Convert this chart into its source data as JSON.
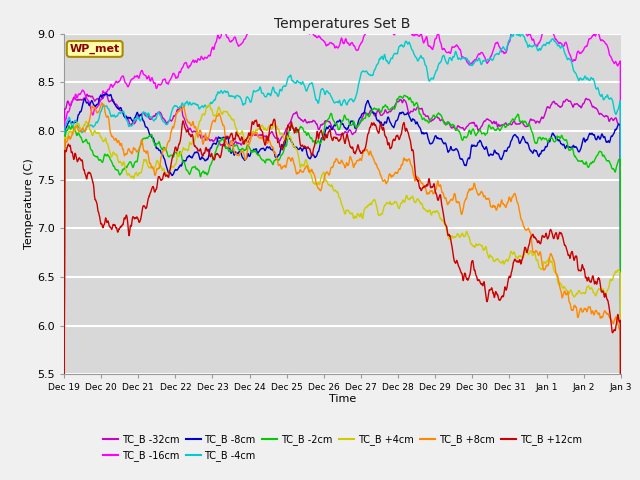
{
  "title": "Temperatures Set B",
  "xlabel": "Time",
  "ylabel": "Temperature (C)",
  "ylim": [
    5.5,
    9.0
  ],
  "series_colors": {
    "TC_B -32cm": "#cc00cc",
    "TC_B -16cm": "#ff00ff",
    "TC_B -8cm": "#0000cc",
    "TC_B -4cm": "#00cccc",
    "TC_B -2cm": "#00cc00",
    "TC_B +4cm": "#cccc00",
    "TC_B +8cm": "#ff8800",
    "TC_B +12cm": "#cc0000"
  },
  "x_tick_labels": [
    "Dec 19",
    "Dec 20",
    "Dec 21",
    "Dec 22",
    "Dec 23",
    "Dec 24",
    "Dec 25",
    "Dec 26",
    "Dec 27",
    "Dec 28",
    "Dec 29",
    "Dec 30",
    "Dec 31",
    "Jan 1",
    "Jan 2",
    "Jan 3"
  ],
  "wp_met_label": "WP_met",
  "fig_facecolor": "#f0f0f0",
  "plot_bg_color": "#d8d8d8",
  "n_points": 3600,
  "legend_labels": [
    "TC_B -32cm",
    "TC_B -16cm",
    "TC_B -8cm",
    "TC_B -4cm",
    "TC_B -2cm",
    "TC_B +4cm",
    "TC_B +8cm",
    "TC_B +12cm"
  ]
}
